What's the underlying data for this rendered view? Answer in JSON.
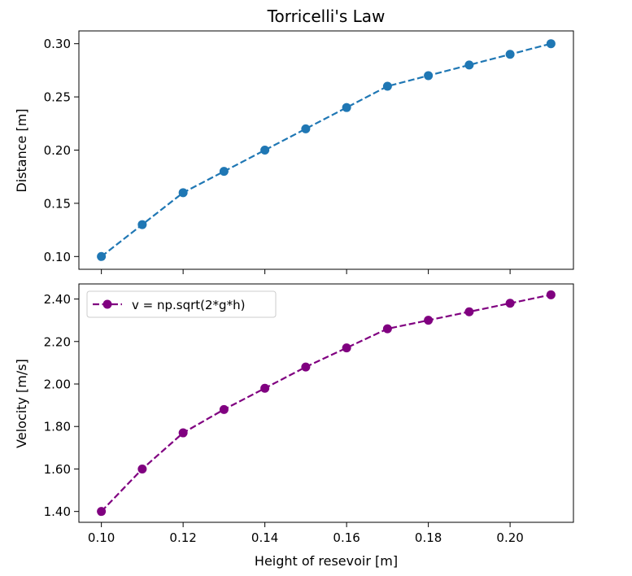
{
  "title": "Torricelli's Law",
  "colors": {
    "distance_series": "#1f77b4",
    "velocity_series": "#800080"
  },
  "chart_data": [
    {
      "type": "line",
      "title": "Torricelli's Law",
      "xlabel": "",
      "ylabel": "Distance [m]",
      "x": [
        0.1,
        0.11,
        0.12,
        0.13,
        0.14,
        0.15,
        0.16,
        0.17,
        0.18,
        0.19,
        0.2,
        0.21
      ],
      "series": [
        {
          "values": [
            0.1,
            0.13,
            0.16,
            0.18,
            0.2,
            0.22,
            0.24,
            0.26,
            0.27,
            0.28,
            0.29,
            0.3
          ],
          "line_style": "dashed",
          "marker": "circle",
          "color": "#1f77b4"
        }
      ],
      "ylim": [
        0.088,
        0.312
      ],
      "xlim": [
        0.0945,
        0.2155
      ],
      "yticks": [
        "0.10",
        "0.15",
        "0.20",
        "0.25",
        "0.30"
      ],
      "xticks_labels_shown": false,
      "grid": false
    },
    {
      "type": "line",
      "xlabel": "Height of resevoir [m]",
      "ylabel": "Velocity [m/s]",
      "x": [
        0.1,
        0.11,
        0.12,
        0.13,
        0.14,
        0.15,
        0.16,
        0.17,
        0.18,
        0.19,
        0.2,
        0.21
      ],
      "series": [
        {
          "name": "v = np.sqrt(2*g*h)",
          "values": [
            1.4,
            1.6,
            1.77,
            1.88,
            1.98,
            2.08,
            2.17,
            2.26,
            2.3,
            2.34,
            2.38,
            2.42
          ],
          "line_style": "dashed",
          "marker": "circle",
          "color": "#800080"
        }
      ],
      "ylim": [
        1.349,
        2.471
      ],
      "xlim": [
        0.0945,
        0.2155
      ],
      "yticks": [
        "1.40",
        "1.60",
        "1.80",
        "2.00",
        "2.20",
        "2.40"
      ],
      "xticks": [
        "0.10",
        "0.12",
        "0.14",
        "0.16",
        "0.18",
        "0.20"
      ],
      "legend": "top-left",
      "grid": false
    }
  ]
}
